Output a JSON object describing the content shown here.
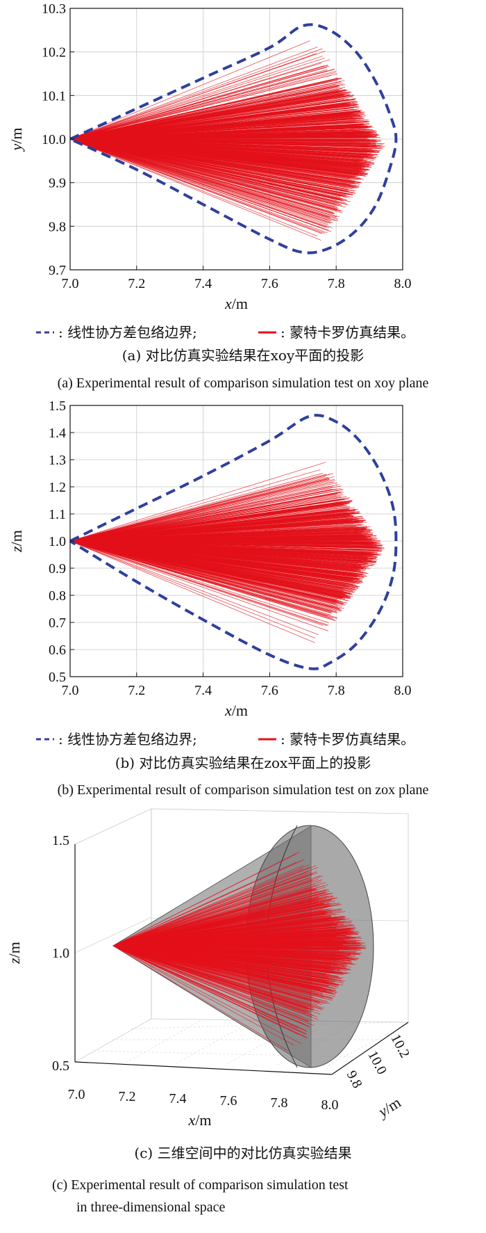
{
  "legend": {
    "cov_label": ": 线性协方差包络边界;",
    "mc_label": ": 蒙特卡罗仿真结果。"
  },
  "colors": {
    "boundary": "#2f3f9c",
    "monte_carlo": "#e3101a",
    "ellipsoid": "#6f6f6f"
  },
  "chart_data": [
    {
      "type": "line",
      "panel": "a",
      "xlabel": "x/m",
      "ylabel": "y/m",
      "xlim": [
        7.0,
        8.0
      ],
      "ylim": [
        9.7,
        10.3
      ],
      "x_ticks": [
        "7.0",
        "7.2",
        "7.4",
        "7.6",
        "7.8",
        "8.0"
      ],
      "y_ticks": [
        "9.7",
        "9.8",
        "9.9",
        "10.0",
        "10.1",
        "10.2",
        "10.3"
      ],
      "grid": true,
      "series": [
        {
          "name": "线性协方差包络边界",
          "style": "dashed",
          "x": [
            7.0,
            7.2,
            7.4,
            7.6,
            7.7,
            7.78,
            7.86,
            7.92,
            7.96,
            7.98,
            7.96,
            7.92,
            7.86,
            7.78,
            7.7,
            7.6,
            7.4,
            7.2,
            7.0
          ],
          "y": [
            10.0,
            10.07,
            10.14,
            10.21,
            10.26,
            10.25,
            10.2,
            10.13,
            10.06,
            10.0,
            9.93,
            9.85,
            9.79,
            9.75,
            9.74,
            9.77,
            9.85,
            9.93,
            10.0
          ]
        },
        {
          "name": "蒙特卡罗仿真结果",
          "style": "fan",
          "origin": [
            7.0,
            10.0
          ],
          "x_end_range": [
            7.55,
            7.95
          ],
          "y_end_range": [
            9.72,
            10.25
          ]
        }
      ]
    },
    {
      "type": "line",
      "panel": "b",
      "xlabel": "x/m",
      "ylabel": "z/m",
      "xlim": [
        7.0,
        8.0
      ],
      "ylim": [
        0.5,
        1.5
      ],
      "x_ticks": [
        "7.0",
        "7.2",
        "7.4",
        "7.6",
        "7.8",
        "8.0"
      ],
      "y_ticks": [
        "0.5",
        "0.6",
        "0.7",
        "0.8",
        "0.9",
        "1.0",
        "1.1",
        "1.2",
        "1.3",
        "1.4",
        "1.5"
      ],
      "grid": true,
      "series": [
        {
          "name": "线性协方差包络边界",
          "style": "dashed",
          "x": [
            7.0,
            7.2,
            7.4,
            7.6,
            7.72,
            7.8,
            7.87,
            7.93,
            7.97,
            7.98,
            7.97,
            7.93,
            7.86,
            7.78,
            7.72,
            7.6,
            7.4,
            7.2,
            7.0
          ],
          "y": [
            1.0,
            1.12,
            1.24,
            1.37,
            1.46,
            1.44,
            1.37,
            1.26,
            1.13,
            1.0,
            0.87,
            0.74,
            0.62,
            0.55,
            0.53,
            0.58,
            0.71,
            0.85,
            1.0
          ]
        },
        {
          "name": "蒙特卡罗仿真结果",
          "style": "fan",
          "origin": [
            7.0,
            1.0
          ],
          "x_end_range": [
            7.55,
            7.95
          ],
          "y_end_range": [
            0.58,
            1.36
          ]
        }
      ]
    },
    {
      "type": "scatter3d",
      "panel": "c",
      "xlabel": "x/m",
      "ylabel": "y/m",
      "zlabel": "z/m",
      "x_ticks": [
        "7.0",
        "7.2",
        "7.4",
        "7.6",
        "7.8",
        "8.0"
      ],
      "y_ticks": [
        "9.8",
        "10.0",
        "10.2"
      ],
      "z_ticks": [
        "0.5",
        "1.0",
        "1.5"
      ],
      "grid": true
    }
  ],
  "captions": {
    "a_zh": "(a) 对比仿真实验结果在xoy平面的投影",
    "a_en": "(a) Experimental result of comparison simulation test on xoy plane",
    "b_zh": "(b) 对比仿真实验结果在zox平面上的投影",
    "b_en": "(b) Experimental result of comparison simulation test on zox plane",
    "c_zh": "(c) 三维空间中的对比仿真实验结果",
    "c_en1": "(c) Experimental result of comparison simulation test",
    "c_en2": "in three-dimensional space"
  }
}
